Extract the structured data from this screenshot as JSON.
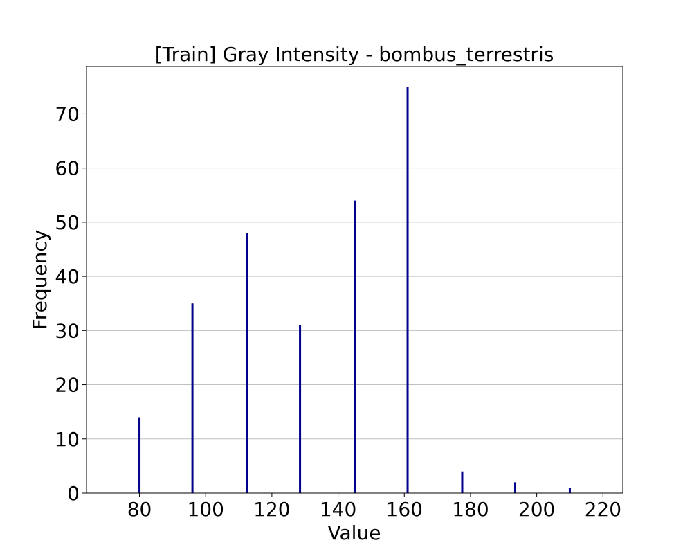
{
  "chart_data": {
    "type": "bar",
    "title": "[Train] Gray Intensity - bombus_terrestris",
    "xlabel": "Value",
    "ylabel": "Frequency",
    "x": [
      80,
      96,
      112.5,
      128.5,
      145,
      161,
      177.5,
      193.5,
      210
    ],
    "values": [
      14,
      35,
      48,
      31,
      54,
      75,
      4,
      2,
      1
    ],
    "xlim": [
      64,
      226
    ],
    "ylim": [
      0,
      78.75
    ],
    "xticks": [
      80,
      100,
      120,
      140,
      160,
      180,
      200,
      220
    ],
    "yticks": [
      0,
      10,
      20,
      30,
      40,
      50,
      60,
      70
    ],
    "grid": "y",
    "bar_color": "#00008b"
  }
}
